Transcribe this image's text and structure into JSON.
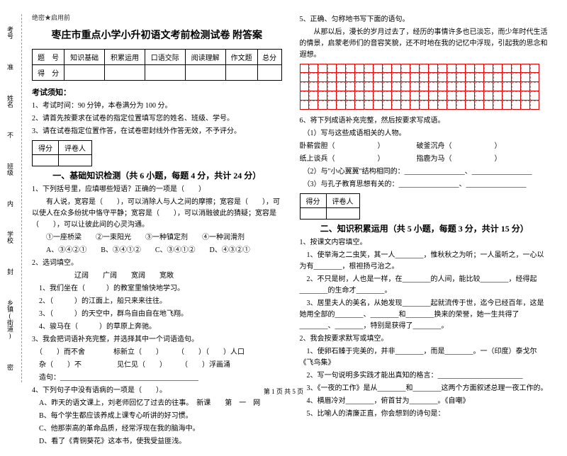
{
  "side": {
    "l1": "考号",
    "l2": "姓名",
    "l3": "班级",
    "l4": "学校",
    "l5": "乡镇(街道)",
    "t1": "密",
    "t2": "封",
    "t3": "内",
    "t4": "不",
    "t5": "准"
  },
  "header": {
    "secret": "绝密★启用前",
    "title": "枣庄市重点小学小升初语文考前检测试卷 附答案"
  },
  "score": {
    "h1": "题　号",
    "h2": "知识基础",
    "h3": "积累运用",
    "h4": "口语交际",
    "h5": "阅读理解",
    "h6": "作文题",
    "h7": "总分",
    "r1": "得　分"
  },
  "notice": {
    "title": "考试须知：",
    "n1": "1、考试时间：90 分钟，本卷满分为 100 分。",
    "n2": "2、请首先按要求在试卷的指定位置填写您的姓名、班级、学号。",
    "n3": "3、请在试卷指定位置作答，在试卷密封线外作答无效，不予评分。"
  },
  "tbl": {
    "c1": "得分",
    "c2": "评卷人"
  },
  "s1": {
    "title": "一、基础知识检测（共 6 小题，每题 4 分，共计 24 分）",
    "q1": "1、下列括号里，应填哪些短语？正确的一项是（　　）",
    "q1a": "　　有人说，宽容是（　　），可以消除人与人之间的摩擦；宽容是（　　），可以使人在众多纷扰中恪守平静；宽容是（　　），可以消融彼此的猜疑；宽容是（　　），可以让彼此间的心灵沟通。",
    "q1b": "　　①一座桥梁　　②一束阳光　　③一种镇定剂　　④一种润滑剂",
    "q1c": "　　A、③④②①　　B、③④①②　　C、③④①②　　D、④③②①",
    "q2": "2、选词填空。",
    "q2a": "　　　　　　辽阔　　广阔　　宽阔　　宽敞",
    "q2b": "　1、我们坐在（　　　）的教室里愉快地学习。",
    "q2c": "　2、（　　　）的江面上，船只来来往往。",
    "q2d": "　3、（　　　）的天空中，群鸟自由自在地飞翔。",
    "q2e": "　4、骏马在（　　　）的草原上奔驰。",
    "q3": "3、我会把词语补充完整，并选择其中一个词语造句。",
    "q3a": "　（　　）而不舍　　　　标新立（　　）　　　（　　）（　　）人口",
    "q3b": "　杂（　　）不　　　　　见仁见（　　）　　　（　　）浮画涌",
    "q3c": "　造句：_______________________________________",
    "q4": "4、下列句子中没有语病的一项是（　　）。",
    "q4a": "　A、昨天的语文课上，刘老师回忆了过去的往事。　新课　　第　一　网",
    "q4b": "　B、每个学生都应该养成上课专心听讲的好习惯。",
    "q4c": "　C、他那崇高的革命品质，经常浮现在我的脑海中。",
    "q4d": "　D、看了《青铜葵花》这本书，使我受益匪浅。"
  },
  "s1r": {
    "q5": "5、正确、匀称地书写下面的语句。",
    "q5a": "　　从那以后，漫长的岁月过去了，经历的事情许多也已淡忘，而少年时代生活的情景，启蒙老师们的音容笑貌，还不时地在我的记忆中浮现，引起我的思念和遐想。",
    "q6": "6、将下列成语补充完整，然后按要求写成语。",
    "q6a": "　（1）写与这些成语相关的人物。",
    "q6b": "卧薪尝胆（　　　　　　）　　　　　破釜沉舟（　　　　　　）",
    "q6c": "纸上谈兵（　　　　　　）　　　　　指鹿为马（　　　　　　）",
    "q6d": "　（2）与\"小心翼翼\"结构相同的：_________________、_________________",
    "q6e": "　（3）与孔子教育思想有关的：_________________、_________________"
  },
  "s2": {
    "title": "二、知识积累运用（共 5 小题，每题 3 分，共计 15 分）",
    "q1": "1、按课文内容填空。",
    "q1a": "　1、使举海之二虫笑，其一人________，惟秋秋之为听；一人虽听之，一心以为有________，根袒扬弓治之。",
    "q1b": "　2、不只是树，人也是一样，在________的人间，能比较________，经得起________的生命才________。",
    "q1c": "　3、居里夫人的美名，从她发现________起就流传于世，迄今已经百年，这是她用全部的________、________和________换来的荣誉，她一生共得了________、________，特别是获得了________。",
    "q2": "2、我会按要求默写或填空。",
    "q2a": "　1、使卵石臻于完美的，并非________，而是________。一（印度）泰戈尔《飞鸟集》",
    "q2b": "　2、写一句说明多实践才能出真知的格言：________________________",
    "q2c": "　3、《一夜的工作》是从________和________这两个方面叙述总理一夜工作的。",
    "q2d": "　4、横眉冷对________，俯首甘为________。《自嘲》",
    "q2e": "　5、比喻人的清廉正直，你会想到的诗句是："
  },
  "grid": {
    "rows": 5,
    "cols": 26
  },
  "footer": "第 1 页 共 5 页"
}
